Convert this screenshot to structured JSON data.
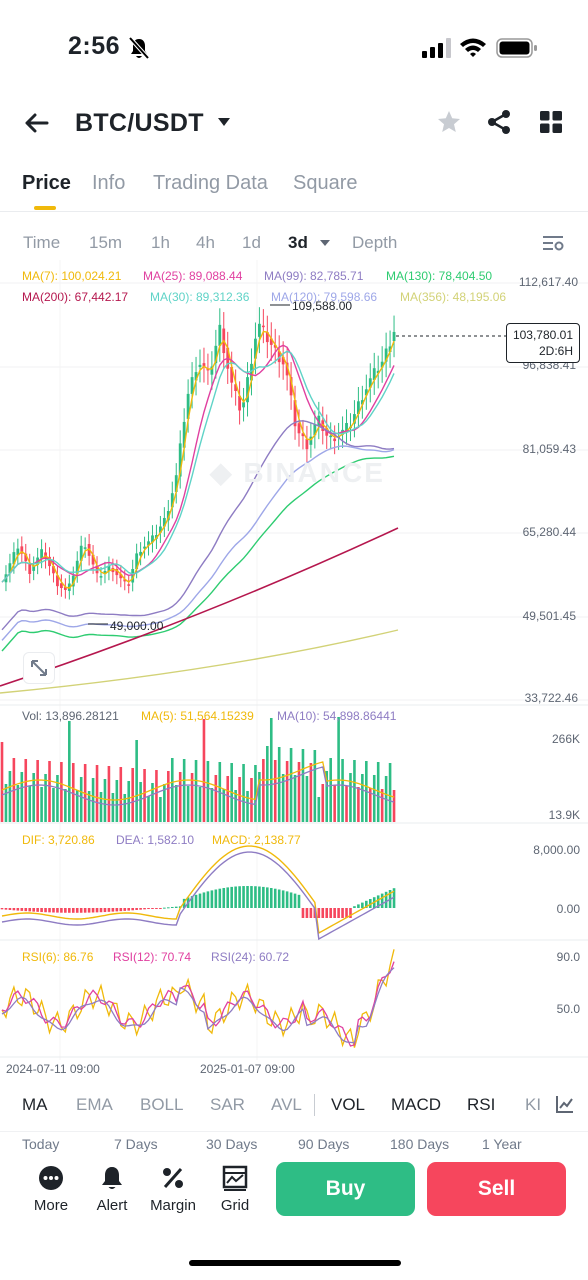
{
  "status": {
    "time": "2:56"
  },
  "header": {
    "pair": "BTC/USDT"
  },
  "tabs": [
    "Price",
    "Info",
    "Trading Data",
    "Square"
  ],
  "intervals": [
    "Time",
    "15m",
    "1h",
    "4h",
    "1d",
    "3d",
    "Depth"
  ],
  "ma": {
    "row1": [
      {
        "text": "MA(7): 100,024.21",
        "color": "#f0b90b"
      },
      {
        "text": "MA(25): 89,088.44",
        "color": "#e040a0"
      },
      {
        "text": "MA(99): 82,785.71",
        "color": "#8e7cc3"
      },
      {
        "text": "MA(130): 78,404.50",
        "color": "#2ecc71"
      }
    ],
    "row2": [
      {
        "text": "MA(200): 67,442.17",
        "color": "#b5174e"
      },
      {
        "text": "MA(30): 89,312.36",
        "color": "#5fd3c7"
      },
      {
        "text": "MA(120): 79,598.66",
        "color": "#9ea7e8"
      },
      {
        "text": "MA(356): 48,195.06",
        "color": "#d2d277"
      }
    ]
  },
  "price_axis": [
    "112,617.40",
    "96,838.41",
    "81,059.43",
    "65,280.44",
    "49,501.45",
    "33,722.46"
  ],
  "high_label": "109,588.00",
  "low_label": "49,000.00",
  "current_price": {
    "price": "103,780.01",
    "countdown": "2D:6H"
  },
  "watermark": "BINANCE",
  "volume": {
    "vol": "Vol: 13,896.28121",
    "ma5": "MA(5): 51,564.15239",
    "ma10": "MA(10): 54,898.86441",
    "axis_top": "266K",
    "axis_bottom": "13.9K"
  },
  "macd": {
    "dif": "DIF: 3,720.86",
    "dea": "DEA: 1,582.10",
    "macd": "MACD: 2,138.77",
    "axis_top": "8,000.00",
    "axis_zero": "0.00"
  },
  "rsi": {
    "rsi6": "RSI(6): 86.76",
    "rsi12": "RSI(12): 70.74",
    "rsi24": "RSI(24): 60.72",
    "axis_top": "90.0",
    "axis_mid": "50.0"
  },
  "dates": [
    "2024-07-11 09:00",
    "2025-01-07 09:00"
  ],
  "indicators": [
    "MA",
    "EMA",
    "BOLL",
    "SAR",
    "AVL",
    "VOL",
    "MACD",
    "RSI",
    "KI"
  ],
  "periods": [
    "Today",
    "7 Days",
    "30 Days",
    "90 Days",
    "180 Days",
    "1 Year"
  ],
  "bottom": {
    "more": "More",
    "alert": "Alert",
    "margin": "Margin",
    "grid": "Grid",
    "buy": "Buy",
    "sell": "Sell"
  },
  "colors": {
    "up": "#2ebd85",
    "down": "#f6465d",
    "accent": "#f0b90b"
  }
}
